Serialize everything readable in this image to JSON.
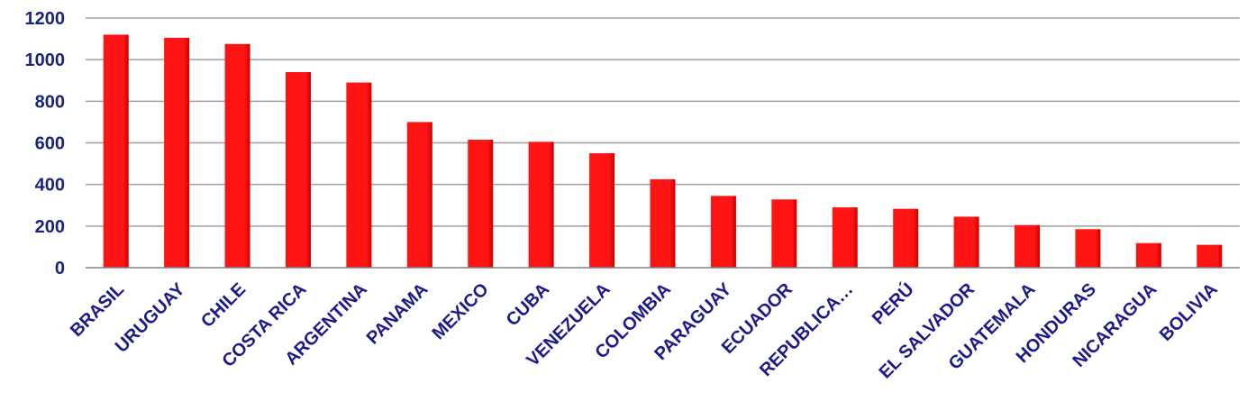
{
  "chart_data": {
    "type": "bar",
    "categories": [
      "BRASIL",
      "URUGUAY",
      "CHILE",
      "COSTA RICA",
      "ARGENTINA",
      "PANAMA",
      "MEXICO",
      "CUBA",
      "VENEZUELA",
      "COLOMBIA",
      "PARAGUAY",
      "ECUADOR",
      "REPUBLICA…",
      "PERÚ",
      "EL SALVADOR",
      "GUATEMALA",
      "HONDURAS",
      "NICARAGUA",
      "BOLIVIA"
    ],
    "values": [
      1120,
      1105,
      1075,
      940,
      890,
      700,
      615,
      605,
      550,
      425,
      345,
      328,
      290,
      283,
      245,
      205,
      185,
      118,
      110
    ],
    "yticks": [
      "0",
      "200",
      "400",
      "600",
      "800",
      "1000",
      "1200"
    ],
    "ylim": [
      0,
      1200
    ],
    "grid": true,
    "legend": "none",
    "bar_color": "#ff1414",
    "bar_shade": "#c80000",
    "title": "",
    "xlabel": "",
    "ylabel": ""
  }
}
